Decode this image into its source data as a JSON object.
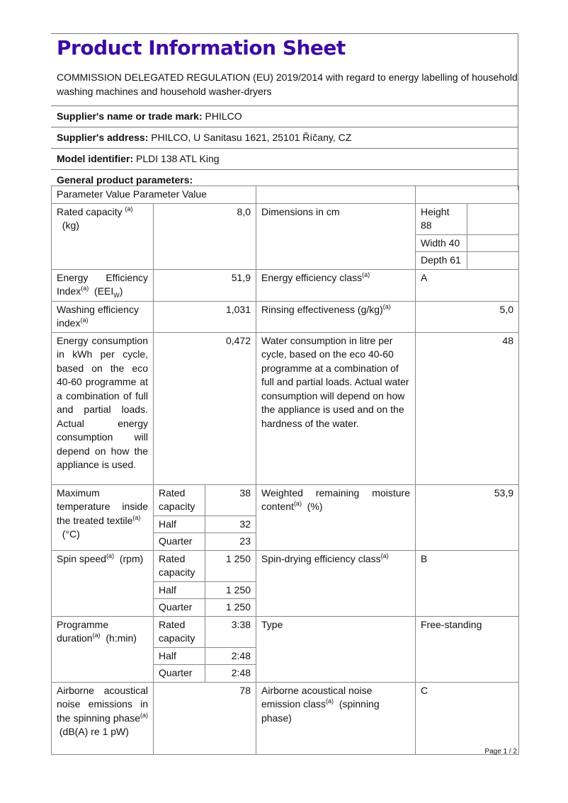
{
  "title": "Product Information Sheet",
  "regulation": "COMMISSION DELEGATED REGULATION (EU) 2019/2014 with regard to energy labelling of household washing machines and household washer-dryers",
  "supplier_name": {
    "label": "Supplier's name or trade mark:",
    "value": "PHILCO"
  },
  "supplier_address": {
    "label": "Supplier's address:",
    "value": "PHILCO, U Sanitasu 1621, 25101 Říčany, CZ"
  },
  "model": {
    "label": "Model identifier:",
    "value": "PLDI 138 ATL King"
  },
  "general": "General product parameters:",
  "table": {
    "header": "Parameter Value Parameter Value",
    "sup": "(a)",
    "rated_capacity": {
      "label": "Rated capacity",
      "unit": "(kg)",
      "value": "8,0"
    },
    "dimensions": {
      "label": "Dimensions in cm",
      "height": "Height 88",
      "width": "Width 40",
      "depth": "Depth 61"
    },
    "eei": {
      "label": "Energy Efficiency Index",
      "unit": "(EEI",
      "unit_sub": "W",
      "unit_end": ")",
      "value": "51,9"
    },
    "eclass": {
      "label": "Energy efficiency class",
      "value": "A"
    },
    "wash": {
      "label": "Washing efficiency index",
      "value": "1,031"
    },
    "rinse": {
      "label": "Rinsing effectiveness (g/kg)",
      "value": "5,0"
    },
    "energy": {
      "label": "Energy consumption in kWh per cycle, based on the eco 40-60 programme at a combination of full and partial loads. Actual energy consumption will depend on how the appliance is used.",
      "value": "0,472"
    },
    "water": {
      "label": "Water consumption in litre per cycle, based on the eco 40-60 programme at a combination of full and partial loads. Actual water consumption will depend on how the appliance is used and on the hardness of the water.",
      "value": "48"
    },
    "loads": {
      "rated": "Rated capacity",
      "half": "Half",
      "quarter": "Quarter"
    },
    "temp": {
      "label": "Maximum temperature inside the treated textile",
      "unit": "(°C)",
      "rated": "38",
      "half": "32",
      "quarter": "23"
    },
    "moisture": {
      "label": "Weighted remaining moisture content",
      "unit": "(%)",
      "value": "53,9"
    },
    "spin": {
      "label": "Spin speed",
      "unit": "(rpm)",
      "rated": "1 250",
      "half": "1 250",
      "quarter": "1 250"
    },
    "spinclass": {
      "label": "Spin-drying efficiency class",
      "value": "B"
    },
    "duration": {
      "label": "Programme duration",
      "unit": "(h:min)",
      "rated": "3:38",
      "half": "2:48",
      "quarter": "2:48"
    },
    "type": {
      "label": "Type",
      "value": "Free-standing"
    },
    "noise": {
      "label": "Airborne acoustical noise emissions in the spinning phase",
      "unit": "(dB(A) re 1 pW)",
      "value": "78"
    },
    "noiseclass": {
      "label": "Airborne acoustical noise emission class",
      "unit": "(spinning phase)",
      "value": "C"
    }
  },
  "footer": "Page 1 / 2",
  "colors": {
    "title": "#3d0aa3"
  }
}
